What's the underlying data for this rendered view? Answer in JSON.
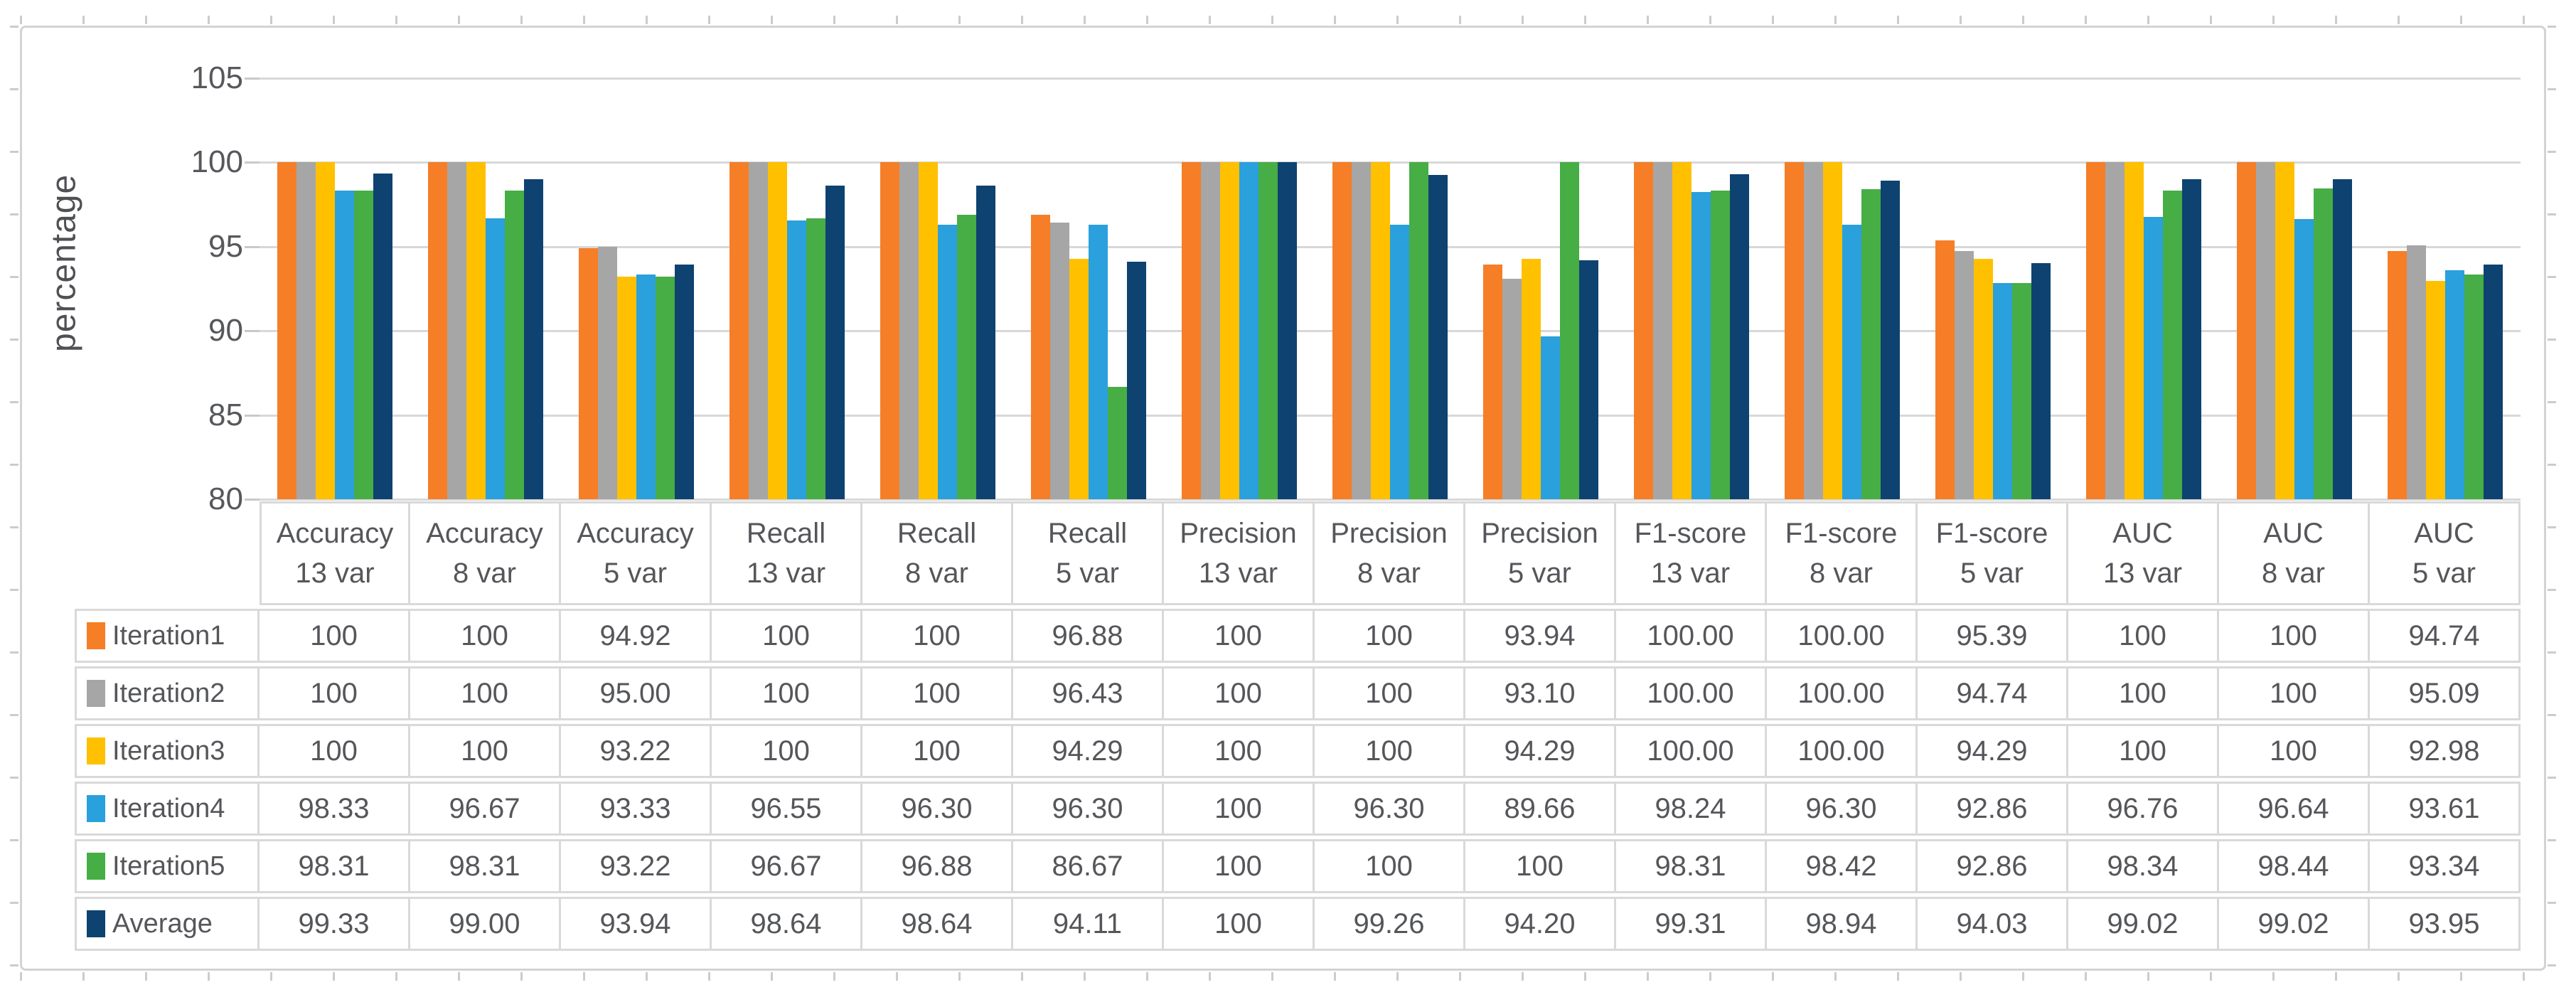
{
  "chart_data": {
    "type": "bar",
    "title": "",
    "ylabel": "percentage",
    "ylim": [
      80,
      105
    ],
    "ytick_interval": 5,
    "grid": "horizontal",
    "legend_position": "table-left",
    "yticks": [
      "105",
      "100",
      "95",
      "90",
      "85",
      "80"
    ],
    "ytick_values": [
      105,
      100,
      95,
      90,
      85,
      80
    ],
    "categories": [
      {
        "metric": "Accuracy",
        "vars": "13 var"
      },
      {
        "metric": "Accuracy",
        "vars": "8 var"
      },
      {
        "metric": "Accuracy",
        "vars": "5 var"
      },
      {
        "metric": "Recall",
        "vars": "13 var"
      },
      {
        "metric": "Recall",
        "vars": "8 var"
      },
      {
        "metric": "Recall",
        "vars": "5 var"
      },
      {
        "metric": "Precision",
        "vars": "13 var"
      },
      {
        "metric": "Precision",
        "vars": "8 var"
      },
      {
        "metric": "Precision",
        "vars": "5 var"
      },
      {
        "metric": "F1-score",
        "vars": "13 var"
      },
      {
        "metric": "F1-score",
        "vars": "8 var"
      },
      {
        "metric": "F1-score",
        "vars": "5 var"
      },
      {
        "metric": "AUC",
        "vars": "13 var"
      },
      {
        "metric": "AUC",
        "vars": "8 var"
      },
      {
        "metric": "AUC",
        "vars": "5 var"
      }
    ],
    "series": [
      {
        "name": "Iteration1",
        "color": "#f57e27",
        "display": [
          "100",
          "100",
          "94.92",
          "100",
          "100",
          "96.88",
          "100",
          "100",
          "93.94",
          "100.00",
          "100.00",
          "95.39",
          "100",
          "100",
          "94.74"
        ]
      },
      {
        "name": "Iteration2",
        "color": "#a6a6a6",
        "display": [
          "100",
          "100",
          "95.00",
          "100",
          "100",
          "96.43",
          "100",
          "100",
          "93.10",
          "100.00",
          "100.00",
          "94.74",
          "100",
          "100",
          "95.09"
        ]
      },
      {
        "name": "Iteration3",
        "color": "#ffc000",
        "display": [
          "100",
          "100",
          "93.22",
          "100",
          "100",
          "94.29",
          "100",
          "100",
          "94.29",
          "100.00",
          "100.00",
          "94.29",
          "100",
          "100",
          "92.98"
        ]
      },
      {
        "name": "Iteration4",
        "color": "#2aa0dc",
        "display": [
          "98.33",
          "96.67",
          "93.33",
          "96.55",
          "96.30",
          "96.30",
          "100",
          "96.30",
          "89.66",
          "98.24",
          "96.30",
          "92.86",
          "96.76",
          "96.64",
          "93.61"
        ]
      },
      {
        "name": "Iteration5",
        "color": "#47ad45",
        "display": [
          "98.31",
          "98.31",
          "93.22",
          "96.67",
          "96.88",
          "86.67",
          "100",
          "100",
          "100",
          "98.31",
          "98.42",
          "92.86",
          "98.34",
          "98.44",
          "93.34"
        ]
      },
      {
        "name": "Average",
        "color": "#0e4270",
        "display": [
          "99.33",
          "99.00",
          "93.94",
          "98.64",
          "98.64",
          "94.11",
          "100",
          "99.26",
          "94.20",
          "99.31",
          "98.94",
          "94.03",
          "99.02",
          "99.02",
          "93.95"
        ]
      }
    ]
  }
}
